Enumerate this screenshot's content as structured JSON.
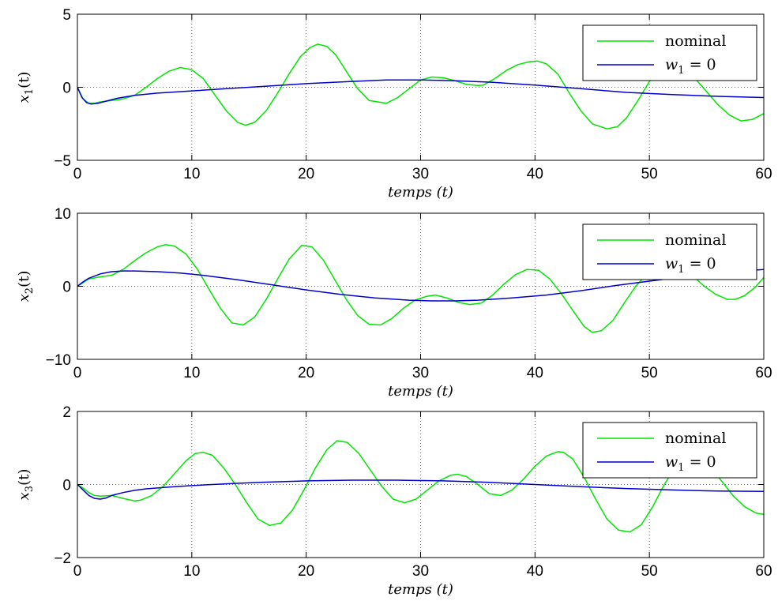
{
  "colors": {
    "nominal": "#00e600",
    "w1_zero": "#0000cc",
    "axis": "#000000",
    "grid": "#444444"
  },
  "chart_data": [
    {
      "type": "line",
      "ylabel": {
        "var": "x",
        "sub": "1",
        "arg": "(t)"
      },
      "xlabel": "temps (t)",
      "xlim": [
        0,
        60
      ],
      "ylim": [
        -5,
        5
      ],
      "xticks": [
        "0",
        "10",
        "20",
        "30",
        "40",
        "50",
        "60"
      ],
      "yticks": [
        "−5",
        "0",
        "5"
      ],
      "ytick_values": [
        -5,
        0,
        5
      ],
      "grid": true,
      "legend": {
        "position": "top-right",
        "entries": [
          "nominal",
          "w_1 = 0"
        ],
        "entry1_math": {
          "var": "w",
          "sub": "1",
          "rest": " = 0"
        }
      },
      "series": [
        {
          "name": "nominal",
          "color_key": "nominal",
          "x": [
            0,
            0.5,
            1,
            1.5,
            2,
            3,
            4,
            5,
            6,
            7,
            8,
            9,
            10,
            11,
            12,
            13,
            14,
            14.7,
            15.5,
            16.5,
            17.5,
            18.5,
            19.5,
            20.3,
            21,
            21.8,
            22.6,
            23.5,
            24.5,
            25.5,
            27,
            28,
            29,
            30,
            31,
            32,
            33,
            34,
            35,
            35.5,
            36.5,
            37.5,
            38.5,
            39.5,
            40.2,
            41,
            42,
            43,
            44,
            45,
            46.3,
            47.2,
            48,
            49,
            50,
            51,
            52,
            53,
            54,
            55,
            56,
            57,
            58,
            59,
            60
          ],
          "y": [
            0,
            -0.8,
            -1.1,
            -1.1,
            -1.0,
            -0.9,
            -0.8,
            -0.55,
            0.0,
            0.6,
            1.1,
            1.35,
            1.2,
            0.6,
            -0.5,
            -1.6,
            -2.4,
            -2.6,
            -2.4,
            -1.6,
            -0.4,
            0.9,
            2.1,
            2.7,
            2.95,
            2.8,
            2.2,
            1.1,
            -0.1,
            -0.9,
            -1.1,
            -0.7,
            -0.1,
            0.5,
            0.7,
            0.65,
            0.45,
            0.2,
            0.12,
            0.15,
            0.6,
            1.15,
            1.55,
            1.75,
            1.8,
            1.6,
            0.9,
            -0.4,
            -1.6,
            -2.5,
            -2.85,
            -2.7,
            -2.1,
            -0.9,
            0.4,
            1.2,
            1.45,
            1.2,
            0.6,
            -0.3,
            -1.2,
            -1.9,
            -2.3,
            -2.2,
            -1.8
          ]
        },
        {
          "name": "w_1 = 0",
          "color_key": "w1_zero",
          "x": [
            0,
            0.4,
            0.8,
            1.2,
            1.8,
            2.5,
            3.5,
            5,
            7,
            10,
            13,
            16,
            20,
            24,
            27,
            30,
            33,
            36,
            40,
            44,
            48,
            52,
            56,
            60
          ],
          "y": [
            0,
            -0.7,
            -1.05,
            -1.15,
            -1.1,
            -0.95,
            -0.75,
            -0.55,
            -0.4,
            -0.25,
            -0.1,
            0.05,
            0.25,
            0.4,
            0.5,
            0.5,
            0.45,
            0.35,
            0.15,
            -0.1,
            -0.35,
            -0.5,
            -0.62,
            -0.7
          ]
        }
      ]
    },
    {
      "type": "line",
      "ylabel": {
        "var": "x",
        "sub": "2",
        "arg": "(t)"
      },
      "xlabel": "temps (t)",
      "xlim": [
        0,
        60
      ],
      "ylim": [
        -10,
        10
      ],
      "xticks": [
        "0",
        "10",
        "20",
        "30",
        "40",
        "50",
        "60"
      ],
      "yticks": [
        "−10",
        "0",
        "10"
      ],
      "ytick_values": [
        -10,
        0,
        10
      ],
      "grid": true,
      "legend": {
        "position": "top-right",
        "entries": [
          "nominal",
          "w_1 = 0"
        ],
        "entry1_math": {
          "var": "w",
          "sub": "1",
          "rest": " = 0"
        }
      },
      "series": [
        {
          "name": "nominal",
          "color_key": "nominal",
          "x": [
            0,
            1,
            2,
            3,
            4,
            5,
            6,
            7,
            7.7,
            8.5,
            9.5,
            10.5,
            11.5,
            12.5,
            13.5,
            14.5,
            15.5,
            16.5,
            17.5,
            18.5,
            19.6,
            20.5,
            21.5,
            22.5,
            23.5,
            24.5,
            25.5,
            26.5,
            27.5,
            28.5,
            29.5,
            30.5,
            31.3,
            32.3,
            33.3,
            34.3,
            35.3,
            36.3,
            37.3,
            38.3,
            39.3,
            40.3,
            41.3,
            42.3,
            43.3,
            44.3,
            45,
            45.8,
            46.8,
            47.8,
            48.8,
            49.8,
            50.8,
            51.8,
            52.8,
            53.8,
            54.8,
            55.8,
            56.8,
            57.5,
            58.3,
            59.2,
            60
          ],
          "y": [
            0,
            1.0,
            1.3,
            1.5,
            2.3,
            3.5,
            4.6,
            5.4,
            5.7,
            5.5,
            4.4,
            2.3,
            -0.4,
            -3.0,
            -5.0,
            -5.3,
            -4.2,
            -1.8,
            1.0,
            3.7,
            5.6,
            5.4,
            3.6,
            0.9,
            -1.8,
            -4.0,
            -5.2,
            -5.3,
            -4.4,
            -3.0,
            -1.9,
            -1.4,
            -1.2,
            -1.6,
            -2.2,
            -2.5,
            -2.3,
            -1.2,
            0.3,
            1.6,
            2.3,
            2.2,
            1.0,
            -1.0,
            -3.3,
            -5.5,
            -6.3,
            -6.1,
            -4.7,
            -2.3,
            0.0,
            1.7,
            2.6,
            2.8,
            2.4,
            1.4,
            0.0,
            -1.1,
            -1.8,
            -1.8,
            -1.3,
            -0.2,
            1.2
          ]
        },
        {
          "name": "w_1 = 0",
          "color_key": "w1_zero",
          "x": [
            0,
            0.5,
            1,
            2,
            3,
            4,
            5,
            7,
            9,
            11,
            14,
            17,
            20,
            23,
            26,
            29,
            31,
            33,
            35,
            38,
            41,
            44,
            47,
            50,
            53,
            56,
            58,
            60
          ],
          "y": [
            0,
            0.6,
            1.1,
            1.7,
            2.0,
            2.1,
            2.1,
            2.0,
            1.8,
            1.5,
            0.9,
            0.2,
            -0.5,
            -1.1,
            -1.6,
            -1.9,
            -2.0,
            -2.0,
            -1.9,
            -1.6,
            -1.2,
            -0.6,
            0.1,
            0.7,
            1.3,
            1.8,
            2.1,
            2.3
          ]
        }
      ]
    },
    {
      "type": "line",
      "ylabel": {
        "var": "x",
        "sub": "3",
        "arg": "(t)"
      },
      "xlabel": "temps (t)",
      "xlim": [
        0,
        60
      ],
      "ylim": [
        -2,
        2
      ],
      "xticks": [
        "0",
        "10",
        "20",
        "30",
        "40",
        "50",
        "60"
      ],
      "yticks": [
        "−2",
        "0",
        "2"
      ],
      "ytick_values": [
        -2,
        0,
        2
      ],
      "grid": true,
      "legend": {
        "position": "top-right",
        "entries": [
          "nominal",
          "w_1 = 0"
        ],
        "entry1_math": {
          "var": "w",
          "sub": "1",
          "rest": " = 0"
        }
      },
      "series": [
        {
          "name": "nominal",
          "color_key": "nominal",
          "x": [
            0,
            0.5,
            1,
            1.5,
            2,
            3,
            4,
            5,
            5.5,
            6.5,
            7.5,
            8.5,
            9.5,
            10.3,
            11,
            11.8,
            12.8,
            13.8,
            14.8,
            15.8,
            16.8,
            17.8,
            18.8,
            19.8,
            20.8,
            21.8,
            22.7,
            23.6,
            24.6,
            25.6,
            26.6,
            27.6,
            28.6,
            29.6,
            30.6,
            31.6,
            32.6,
            33.2,
            34,
            35,
            36,
            37,
            38,
            39,
            40,
            41,
            42,
            42.5,
            43.3,
            44.3,
            45.3,
            46.3,
            47.3,
            48.3,
            49.3,
            50.3,
            51.3,
            52.3,
            53.3,
            54.3,
            55.3,
            56.3,
            57.3,
            58.3,
            59.3,
            60
          ],
          "y": [
            0,
            -0.1,
            -0.22,
            -0.3,
            -0.32,
            -0.3,
            -0.38,
            -0.45,
            -0.43,
            -0.3,
            -0.05,
            0.3,
            0.65,
            0.85,
            0.88,
            0.8,
            0.45,
            0.0,
            -0.5,
            -0.95,
            -1.12,
            -1.05,
            -0.7,
            -0.15,
            0.45,
            0.95,
            1.2,
            1.15,
            0.85,
            0.4,
            -0.05,
            -0.4,
            -0.5,
            -0.4,
            -0.15,
            0.1,
            0.25,
            0.28,
            0.22,
            0.0,
            -0.25,
            -0.3,
            -0.15,
            0.15,
            0.5,
            0.78,
            0.9,
            0.88,
            0.7,
            0.2,
            -0.4,
            -0.95,
            -1.25,
            -1.3,
            -1.1,
            -0.6,
            0.0,
            0.5,
            0.75,
            0.75,
            0.5,
            0.1,
            -0.3,
            -0.6,
            -0.78,
            -0.82
          ]
        },
        {
          "name": "w_1 = 0",
          "color_key": "w1_zero",
          "x": [
            0,
            0.5,
            1,
            1.5,
            2,
            2.5,
            3,
            4,
            5,
            6,
            8,
            10,
            13,
            16,
            20,
            24,
            28,
            32,
            36,
            40,
            44,
            48,
            52,
            56,
            60
          ],
          "y": [
            0,
            -0.15,
            -0.3,
            -0.38,
            -0.4,
            -0.37,
            -0.3,
            -0.22,
            -0.16,
            -0.12,
            -0.07,
            -0.03,
            0.02,
            0.06,
            0.1,
            0.12,
            0.12,
            0.1,
            0.06,
            0.0,
            -0.06,
            -0.11,
            -0.15,
            -0.18,
            -0.19
          ]
        }
      ]
    }
  ]
}
